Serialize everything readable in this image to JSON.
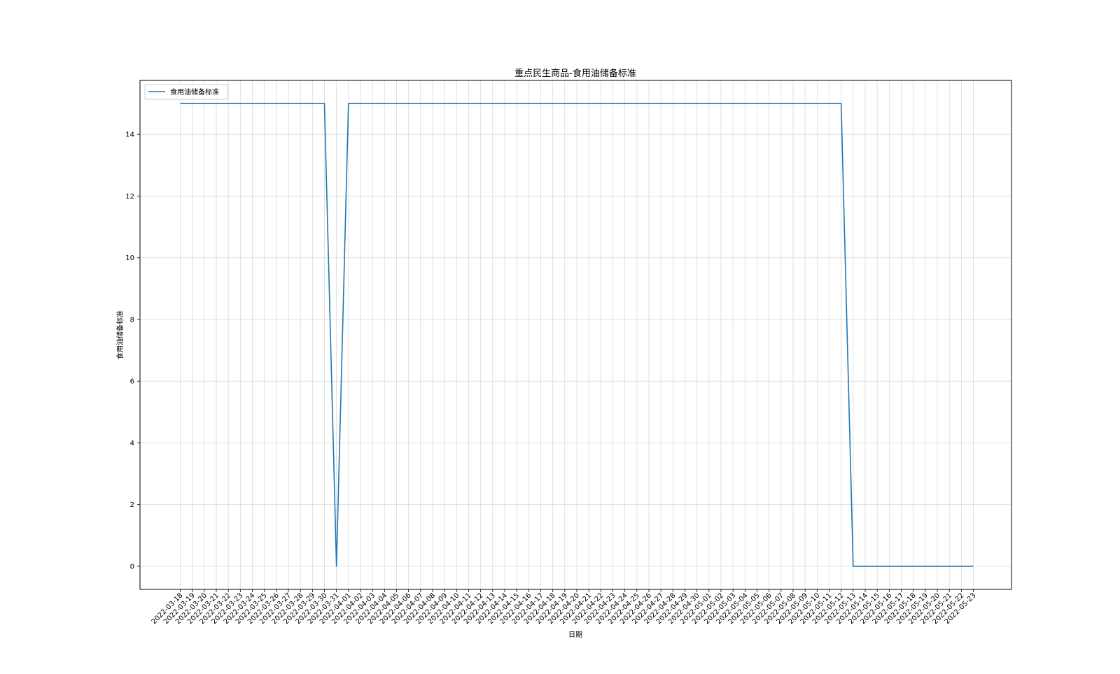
{
  "chart_data": {
    "type": "line",
    "title": "重点民生商品-食用油储备标准",
    "xlabel": "日期",
    "ylabel": "食用油储备标准",
    "ylim": [
      -0.75,
      15.75
    ],
    "yticks": [
      0,
      2,
      4,
      6,
      8,
      10,
      12,
      14
    ],
    "grid": true,
    "legend_position": "upper-left",
    "x": [
      "2022-03-18",
      "2022-03-19",
      "2022-03-20",
      "2022-03-21",
      "2022-03-22",
      "2022-03-23",
      "2022-03-24",
      "2022-03-25",
      "2022-03-26",
      "2022-03-27",
      "2022-03-28",
      "2022-03-29",
      "2022-03-30",
      "2022-03-31",
      "2022-04-01",
      "2022-04-02",
      "2022-04-03",
      "2022-04-04",
      "2022-04-05",
      "2022-04-06",
      "2022-04-07",
      "2022-04-08",
      "2022-04-09",
      "2022-04-10",
      "2022-04-11",
      "2022-04-12",
      "2022-04-13",
      "2022-04-14",
      "2022-04-15",
      "2022-04-16",
      "2022-04-17",
      "2022-04-18",
      "2022-04-19",
      "2022-04-20",
      "2022-04-21",
      "2022-04-22",
      "2022-04-23",
      "2022-04-24",
      "2022-04-25",
      "2022-04-26",
      "2022-04-27",
      "2022-04-28",
      "2022-04-29",
      "2022-04-30",
      "2022-05-01",
      "2022-05-02",
      "2022-05-03",
      "2022-05-04",
      "2022-05-05",
      "2022-05-06",
      "2022-05-07",
      "2022-05-08",
      "2022-05-09",
      "2022-05-10",
      "2022-05-11",
      "2022-05-12",
      "2022-05-13",
      "2022-05-14",
      "2022-05-15",
      "2022-05-16",
      "2022-05-17",
      "2022-05-18",
      "2022-05-19",
      "2022-05-20",
      "2022-05-21",
      "2022-05-22",
      "2022-05-23"
    ],
    "series": [
      {
        "name": "食用油储备标准",
        "color": "#1f77b4",
        "values": [
          15,
          15,
          15,
          15,
          15,
          15,
          15,
          15,
          15,
          15,
          15,
          15,
          15,
          0,
          15,
          15,
          15,
          15,
          15,
          15,
          15,
          15,
          15,
          15,
          15,
          15,
          15,
          15,
          15,
          15,
          15,
          15,
          15,
          15,
          15,
          15,
          15,
          15,
          15,
          15,
          15,
          15,
          15,
          15,
          15,
          15,
          15,
          15,
          15,
          15,
          15,
          15,
          15,
          15,
          15,
          15,
          0,
          0,
          0,
          0,
          0,
          0,
          0,
          0,
          0,
          0,
          0
        ]
      }
    ]
  }
}
